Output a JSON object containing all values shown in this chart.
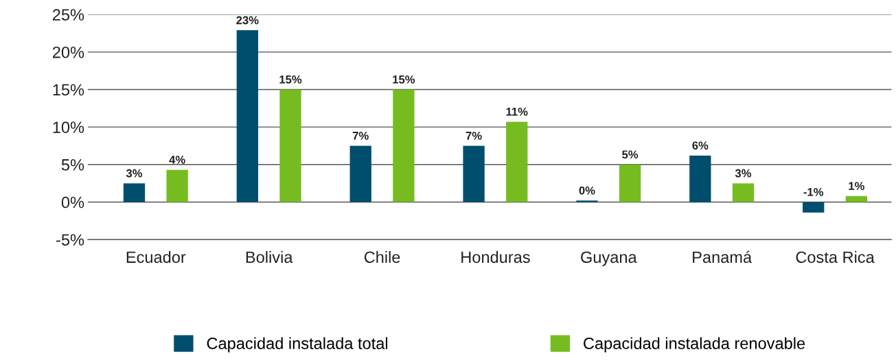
{
  "chart_data": {
    "type": "bar",
    "categories": [
      "Ecuador",
      "Bolivia",
      "Chile",
      "Honduras",
      "Guyana",
      "Panamá",
      "Costa Rica"
    ],
    "series": [
      {
        "name": "Capacidad instalada total",
        "color": "#004e6e",
        "values": [
          2.5,
          22.9,
          7.5,
          7.5,
          0.2,
          6.2,
          -1.4
        ],
        "value_labels": [
          "3%",
          "23%",
          "7%",
          "7%",
          "0%",
          "6%",
          "-1%"
        ]
      },
      {
        "name": "Capacidad instalada renovable",
        "color": "#76bc21",
        "values": [
          4.3,
          15.0,
          15.0,
          10.7,
          5.0,
          2.5,
          0.8
        ],
        "value_labels": [
          "4%",
          "15%",
          "15%",
          "11%",
          "5%",
          "3%",
          "1%"
        ]
      }
    ],
    "ylim": [
      -5,
      25
    ],
    "yticks": [
      {
        "value": -5,
        "label": "-5%"
      },
      {
        "value": 0,
        "label": "0%"
      },
      {
        "value": 5,
        "label": "5%"
      },
      {
        "value": 10,
        "label": "10%"
      },
      {
        "value": 15,
        "label": "15%"
      },
      {
        "value": 20,
        "label": "20%"
      },
      {
        "value": 25,
        "label": "25%"
      }
    ],
    "grid": "y",
    "legend": "bottom"
  }
}
